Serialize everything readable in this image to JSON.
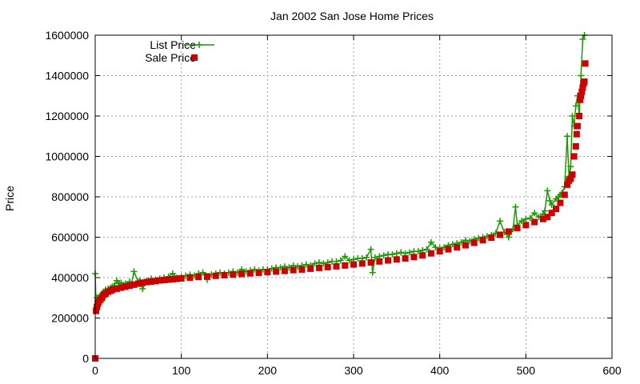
{
  "chart_data": {
    "type": "scatter",
    "title": "Jan 2002 San Jose Home Prices",
    "xlabel": "",
    "ylabel": "Price",
    "xlim": [
      0,
      600
    ],
    "ylim": [
      0,
      1600000
    ],
    "x_ticks": [
      0,
      100,
      200,
      300,
      400,
      500,
      600
    ],
    "y_ticks": [
      0,
      200000,
      400000,
      600000,
      800000,
      1000000,
      1200000,
      1400000,
      1600000
    ],
    "grid": true,
    "legend_position": "top-left",
    "series": [
      {
        "name": "List Price",
        "style": "linespoints",
        "marker": "plus",
        "color": "#1a9a00",
        "points": [
          [
            0,
            420000
          ],
          [
            1,
            250000
          ],
          [
            2,
            300000
          ],
          [
            3,
            285000
          ],
          [
            4,
            300000
          ],
          [
            6,
            310000
          ],
          [
            8,
            320000
          ],
          [
            10,
            330000
          ],
          [
            12,
            340000
          ],
          [
            15,
            345000
          ],
          [
            18,
            350000
          ],
          [
            20,
            355000
          ],
          [
            22,
            360000
          ],
          [
            25,
            385000
          ],
          [
            28,
            370000
          ],
          [
            30,
            375000
          ],
          [
            35,
            370000
          ],
          [
            40,
            380000
          ],
          [
            42,
            360000
          ],
          [
            45,
            430000
          ],
          [
            50,
            380000
          ],
          [
            52,
            385000
          ],
          [
            55,
            345000
          ],
          [
            60,
            385000
          ],
          [
            65,
            395000
          ],
          [
            70,
            390000
          ],
          [
            75,
            395000
          ],
          [
            80,
            400000
          ],
          [
            85,
            405000
          ],
          [
            90,
            420000
          ],
          [
            95,
            400000
          ],
          [
            100,
            405000
          ],
          [
            105,
            410000
          ],
          [
            110,
            415000
          ],
          [
            115,
            410000
          ],
          [
            120,
            420000
          ],
          [
            125,
            425000
          ],
          [
            130,
            390000
          ],
          [
            135,
            415000
          ],
          [
            140,
            420000
          ],
          [
            145,
            425000
          ],
          [
            150,
            420000
          ],
          [
            155,
            425000
          ],
          [
            160,
            430000
          ],
          [
            165,
            425000
          ],
          [
            170,
            440000
          ],
          [
            175,
            430000
          ],
          [
            180,
            435000
          ],
          [
            185,
            440000
          ],
          [
            190,
            435000
          ],
          [
            195,
            440000
          ],
          [
            200,
            440000
          ],
          [
            205,
            445000
          ],
          [
            210,
            450000
          ],
          [
            215,
            450000
          ],
          [
            220,
            455000
          ],
          [
            225,
            450000
          ],
          [
            230,
            460000
          ],
          [
            235,
            455000
          ],
          [
            240,
            460000
          ],
          [
            245,
            465000
          ],
          [
            250,
            460000
          ],
          [
            255,
            470000
          ],
          [
            260,
            475000
          ],
          [
            265,
            470000
          ],
          [
            270,
            475000
          ],
          [
            275,
            480000
          ],
          [
            280,
            480000
          ],
          [
            285,
            485000
          ],
          [
            290,
            505000
          ],
          [
            295,
            485000
          ],
          [
            300,
            490000
          ],
          [
            305,
            495000
          ],
          [
            310,
            495000
          ],
          [
            315,
            500000
          ],
          [
            320,
            540000
          ],
          [
            322,
            425000
          ],
          [
            325,
            500000
          ],
          [
            330,
            505000
          ],
          [
            335,
            510000
          ],
          [
            340,
            515000
          ],
          [
            345,
            515000
          ],
          [
            350,
            520000
          ],
          [
            355,
            525000
          ],
          [
            360,
            520000
          ],
          [
            365,
            525000
          ],
          [
            370,
            530000
          ],
          [
            375,
            530000
          ],
          [
            380,
            535000
          ],
          [
            385,
            540000
          ],
          [
            390,
            575000
          ],
          [
            395,
            550000
          ],
          [
            400,
            545000
          ],
          [
            405,
            550000
          ],
          [
            410,
            560000
          ],
          [
            415,
            565000
          ],
          [
            420,
            570000
          ],
          [
            425,
            575000
          ],
          [
            430,
            585000
          ],
          [
            435,
            580000
          ],
          [
            440,
            590000
          ],
          [
            445,
            595000
          ],
          [
            450,
            600000
          ],
          [
            455,
            605000
          ],
          [
            460,
            610000
          ],
          [
            465,
            620000
          ],
          [
            470,
            680000
          ],
          [
            475,
            625000
          ],
          [
            480,
            600000
          ],
          [
            485,
            640000
          ],
          [
            488,
            750000
          ],
          [
            490,
            660000
          ],
          [
            495,
            680000
          ],
          [
            500,
            690000
          ],
          [
            505,
            695000
          ],
          [
            510,
            720000
          ],
          [
            515,
            700000
          ],
          [
            520,
            715000
          ],
          [
            522,
            730000
          ],
          [
            525,
            830000
          ],
          [
            528,
            780000
          ],
          [
            530,
            760000
          ],
          [
            535,
            790000
          ],
          [
            538,
            800000
          ],
          [
            540,
            810000
          ],
          [
            542,
            820000
          ],
          [
            545,
            850000
          ],
          [
            548,
            1100000
          ],
          [
            550,
            900000
          ],
          [
            552,
            950000
          ],
          [
            554,
            1200000
          ],
          [
            556,
            1150000
          ],
          [
            558,
            1250000
          ],
          [
            560,
            1300000
          ],
          [
            562,
            1200000
          ],
          [
            564,
            1400000
          ],
          [
            566,
            1580000
          ],
          [
            568,
            1600000
          ]
        ]
      },
      {
        "name": "Sale Price",
        "style": "points",
        "marker": "square",
        "color": "#cc0000",
        "points": [
          [
            0,
            0
          ],
          [
            1,
            235000
          ],
          [
            2,
            255000
          ],
          [
            3,
            270000
          ],
          [
            4,
            280000
          ],
          [
            6,
            290000
          ],
          [
            8,
            300000
          ],
          [
            10,
            315000
          ],
          [
            12,
            320000
          ],
          [
            15,
            330000
          ],
          [
            18,
            335000
          ],
          [
            20,
            340000
          ],
          [
            25,
            345000
          ],
          [
            30,
            350000
          ],
          [
            35,
            355000
          ],
          [
            40,
            360000
          ],
          [
            45,
            365000
          ],
          [
            50,
            370000
          ],
          [
            55,
            375000
          ],
          [
            60,
            378000
          ],
          [
            65,
            380000
          ],
          [
            70,
            383000
          ],
          [
            75,
            386000
          ],
          [
            80,
            388000
          ],
          [
            85,
            390000
          ],
          [
            90,
            392000
          ],
          [
            95,
            394000
          ],
          [
            100,
            396000
          ],
          [
            110,
            400000
          ],
          [
            120,
            403000
          ],
          [
            130,
            406000
          ],
          [
            140,
            409000
          ],
          [
            150,
            412000
          ],
          [
            160,
            415000
          ],
          [
            170,
            418000
          ],
          [
            180,
            421000
          ],
          [
            190,
            424000
          ],
          [
            200,
            427000
          ],
          [
            210,
            430000
          ],
          [
            220,
            433000
          ],
          [
            230,
            437000
          ],
          [
            240,
            440000
          ],
          [
            250,
            444000
          ],
          [
            260,
            448000
          ],
          [
            270,
            452000
          ],
          [
            280,
            456000
          ],
          [
            290,
            460000
          ],
          [
            300,
            465000
          ],
          [
            310,
            470000
          ],
          [
            320,
            475000
          ],
          [
            330,
            480000
          ],
          [
            340,
            485000
          ],
          [
            350,
            490000
          ],
          [
            360,
            495000
          ],
          [
            370,
            502000
          ],
          [
            380,
            510000
          ],
          [
            390,
            520000
          ],
          [
            400,
            530000
          ],
          [
            410,
            540000
          ],
          [
            420,
            550000
          ],
          [
            430,
            560000
          ],
          [
            440,
            572000
          ],
          [
            450,
            585000
          ],
          [
            460,
            598000
          ],
          [
            470,
            612000
          ],
          [
            480,
            628000
          ],
          [
            490,
            645000
          ],
          [
            500,
            660000
          ],
          [
            510,
            675000
          ],
          [
            520,
            690000
          ],
          [
            525,
            700000
          ],
          [
            530,
            720000
          ],
          [
            535,
            740000
          ],
          [
            540,
            770000
          ],
          [
            545,
            810000
          ],
          [
            548,
            860000
          ],
          [
            550,
            880000
          ],
          [
            552,
            890000
          ],
          [
            554,
            910000
          ],
          [
            556,
            1000000
          ],
          [
            558,
            1050000
          ],
          [
            559,
            1110000
          ],
          [
            560,
            1150000
          ],
          [
            562,
            1200000
          ],
          [
            563,
            1280000
          ],
          [
            564,
            1300000
          ],
          [
            565,
            1320000
          ],
          [
            566,
            1340000
          ],
          [
            567,
            1360000
          ],
          [
            568,
            1370000
          ],
          [
            569,
            1460000
          ]
        ]
      }
    ]
  }
}
